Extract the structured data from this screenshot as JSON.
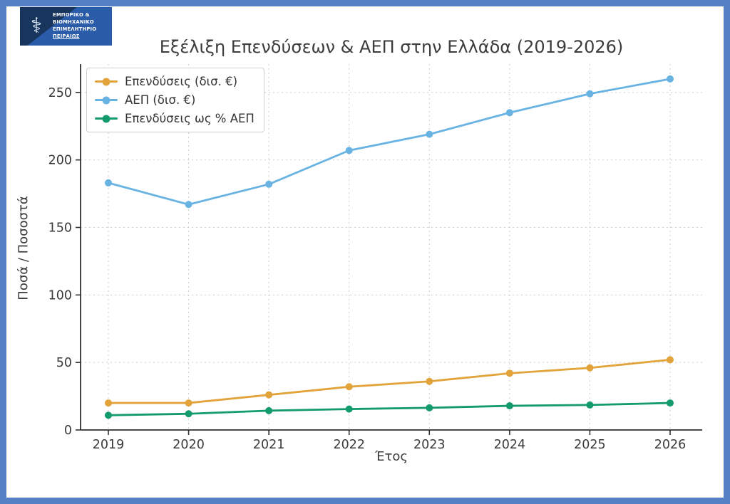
{
  "frame": {
    "border_color": "#5580c5",
    "background": "#ffffff"
  },
  "logo": {
    "emblem_icon": "caduceus",
    "org_lines": [
      "ΕΜΠΟΡΙΚΟ &",
      "ΒΙΟΜΗΧΑΝΙΚΟ",
      "ΕΠΙΜΕΛΗΤΗΡΙΟ",
      "ΠΕΙΡΑΙΩΣ"
    ],
    "colors": {
      "panel": "#2b5ca9",
      "accent_dark": "#18355e",
      "text": "#ffffff"
    }
  },
  "chart_data": {
    "type": "line",
    "title": "Εξέλιξη Επενδύσεων & ΑΕΠ στην Ελλάδα (2019-2026)",
    "xlabel": "Έτος",
    "ylabel": "Ποσά / Ποσοστά",
    "categories": [
      "2019",
      "2020",
      "2021",
      "2022",
      "2023",
      "2024",
      "2025",
      "2026"
    ],
    "yticks": [
      0,
      50,
      100,
      150,
      200,
      250
    ],
    "ylim": [
      0,
      271
    ],
    "grid": "dashed, both axes",
    "legend_position": "upper left",
    "series": [
      {
        "name": "Επενδύσεις (δισ. €)",
        "color": "#e2a33b",
        "values": [
          20,
          20,
          26,
          32,
          36,
          42,
          46,
          52
        ]
      },
      {
        "name": "ΑΕΠ (δισ. €)",
        "color": "#68b3e2",
        "values": [
          183,
          167,
          182,
          207,
          219,
          235,
          249,
          260
        ]
      },
      {
        "name": "Επενδύσεις ως % ΑΕΠ",
        "color": "#139b6c",
        "values": [
          10.9,
          12.0,
          14.3,
          15.5,
          16.4,
          17.9,
          18.5,
          20.0
        ]
      }
    ]
  }
}
